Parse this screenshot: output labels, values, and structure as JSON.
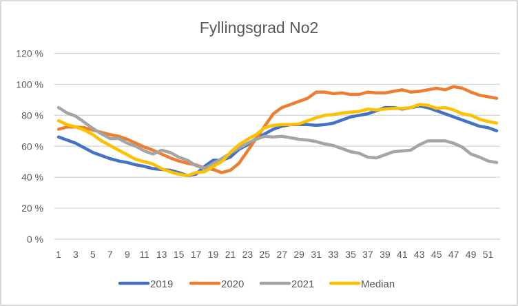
{
  "chart_data": {
    "type": "line",
    "title": "Fyllingsgrad No2",
    "xlabel": "",
    "ylabel": "",
    "ylim": [
      0,
      120
    ],
    "yticks": [
      0,
      20,
      40,
      60,
      80,
      100,
      120
    ],
    "ytick_labels": [
      "0 %",
      "20 %",
      "40 %",
      "60 %",
      "80 %",
      "100 %",
      "120 %"
    ],
    "x": [
      1,
      2,
      3,
      4,
      5,
      6,
      7,
      8,
      9,
      10,
      11,
      12,
      13,
      14,
      15,
      16,
      17,
      18,
      19,
      20,
      21,
      22,
      23,
      24,
      25,
      26,
      27,
      28,
      29,
      30,
      31,
      32,
      33,
      34,
      35,
      36,
      37,
      38,
      39,
      40,
      41,
      42,
      43,
      44,
      45,
      46,
      47,
      48,
      49,
      50,
      51,
      52
    ],
    "xtick_labels": [
      "1",
      "3",
      "5",
      "7",
      "9",
      "11",
      "13",
      "15",
      "17",
      "19",
      "21",
      "23",
      "25",
      "27",
      "29",
      "31",
      "33",
      "35",
      "37",
      "39",
      "41",
      "43",
      "45",
      "47",
      "49",
      "51"
    ],
    "grid": true,
    "legend_position": "bottom",
    "series": [
      {
        "name": "2019",
        "color": "#4472c4",
        "values": [
          66,
          64,
          62,
          59,
          56,
          54,
          52,
          50.5,
          49.5,
          48,
          47,
          45.5,
          45,
          44.5,
          43,
          41,
          42,
          47,
          51,
          51,
          53,
          58,
          61,
          65,
          68,
          71,
          73,
          74,
          74,
          74,
          73.5,
          74,
          75,
          77,
          79,
          80,
          81,
          83,
          85,
          85,
          84,
          85,
          86,
          85,
          83,
          81,
          79,
          77,
          75,
          73,
          72,
          70
        ]
      },
      {
        "name": "2020",
        "color": "#ed7d31",
        "values": [
          71,
          72.5,
          72.5,
          72,
          70.5,
          69,
          67.5,
          66.5,
          64.5,
          62,
          59.5,
          57.5,
          55,
          52.5,
          50.5,
          49,
          48,
          46,
          45,
          43,
          44.5,
          49,
          57,
          65,
          73,
          81,
          85,
          87,
          89,
          91,
          95,
          95,
          94,
          94.5,
          93.5,
          93.5,
          95,
          94.5,
          94.5,
          95.5,
          96.5,
          95,
          95.5,
          96.5,
          97.5,
          96.5,
          98.5,
          97.5,
          95,
          93,
          92,
          91
        ]
      },
      {
        "name": "2021",
        "color": "#a5a5a5",
        "values": [
          85,
          81.5,
          79.5,
          75.5,
          71.5,
          68,
          65,
          65,
          62,
          60,
          57,
          55,
          57.5,
          56,
          53,
          51,
          47.5,
          45.5,
          49,
          52,
          55.5,
          59,
          62,
          64.5,
          66.5,
          66,
          66.5,
          65.5,
          64.5,
          64,
          63,
          61.5,
          60.5,
          58.5,
          56.5,
          55.5,
          53,
          52.5,
          54.5,
          56.5,
          57,
          57.5,
          61,
          63.5,
          63.5,
          63.5,
          62,
          59.5,
          55,
          53,
          50.5,
          49.5
        ]
      },
      {
        "name": "Median",
        "color": "#ffc000",
        "values": [
          76.5,
          74,
          72.5,
          70.5,
          67.5,
          63.5,
          60.5,
          57.5,
          54.5,
          51.5,
          50,
          48.5,
          45.5,
          43.5,
          42,
          41,
          43,
          43.5,
          47,
          50,
          56,
          61,
          64.5,
          67.5,
          72,
          73.5,
          74,
          74,
          74.5,
          76.5,
          78.5,
          80,
          80.5,
          81.5,
          82,
          82.5,
          84,
          83.5,
          84,
          84.5,
          84.5,
          85,
          87,
          86.5,
          84.5,
          85,
          83.5,
          81,
          80,
          77.5,
          76,
          75
        ]
      }
    ]
  }
}
